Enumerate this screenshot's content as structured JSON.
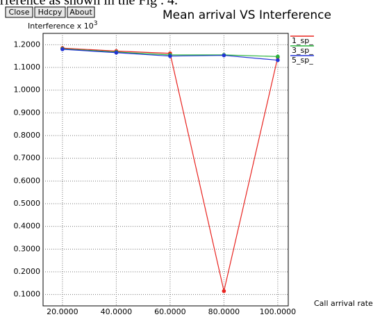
{
  "caption_fragment": "rference as shown in the Fig . 4.",
  "buttons": [
    "Close",
    "Hdcpy",
    "About"
  ],
  "chart_data": {
    "type": "line",
    "title": "Mean arrival VS Interference",
    "y_label": "Interference x 10",
    "y_label_exponent": "3",
    "x_label": "Call arrival rate",
    "x": [
      20,
      40,
      60,
      80,
      100
    ],
    "series": [
      {
        "name": "1_sp_",
        "color": "#e8231f",
        "values": [
          1.185,
          1.172,
          1.162,
          0.115,
          1.145
        ]
      },
      {
        "name": "3_sp_",
        "color": "#26b33a",
        "values": [
          1.182,
          1.168,
          1.155,
          1.155,
          1.148
        ]
      },
      {
        "name": "5_sp_",
        "color": "#2233d6",
        "values": [
          1.18,
          1.165,
          1.15,
          1.153,
          1.132
        ]
      }
    ],
    "xlim": [
      12.8,
      103.9
    ],
    "xticks": [
      {
        "value": 20,
        "label": "20.0000"
      },
      {
        "value": 40,
        "label": "40.0000"
      },
      {
        "value": 60,
        "label": "60.0000"
      },
      {
        "value": 80,
        "label": "80.0000"
      },
      {
        "value": 100,
        "label": "100.0000"
      }
    ],
    "ylim": [
      0.05,
      1.25
    ],
    "yticks": [
      {
        "value": 0.1,
        "label": "0.1000"
      },
      {
        "value": 0.2,
        "label": "0.2000"
      },
      {
        "value": 0.3,
        "label": "0.3000"
      },
      {
        "value": 0.4,
        "label": "0.4000"
      },
      {
        "value": 0.5,
        "label": "0.5000"
      },
      {
        "value": 0.6,
        "label": "0.6000"
      },
      {
        "value": 0.7,
        "label": "0.7000"
      },
      {
        "value": 0.8,
        "label": "0.8000"
      },
      {
        "value": 0.9,
        "label": "0.9000"
      },
      {
        "value": 1.0,
        "label": "1.0000"
      },
      {
        "value": 1.1,
        "label": "1.1000"
      },
      {
        "value": 1.2,
        "label": "1.2000"
      }
    ],
    "grid": true,
    "legend": "right"
  }
}
